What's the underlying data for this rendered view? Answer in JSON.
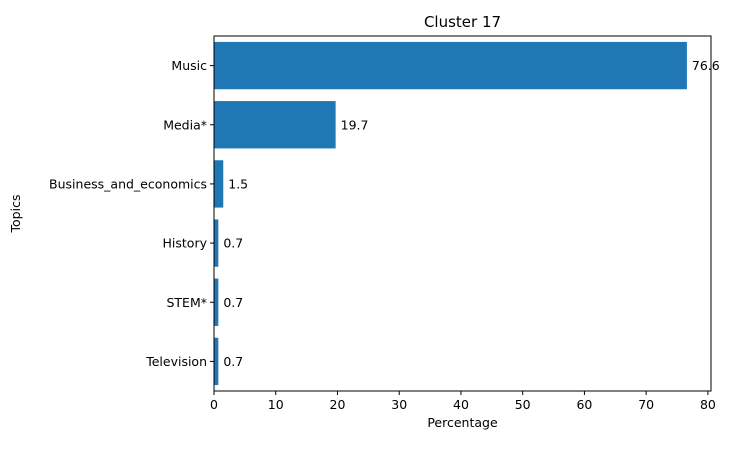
{
  "chart_data": {
    "type": "bar",
    "orientation": "horizontal",
    "title": "Cluster 17",
    "xlabel": "Percentage",
    "ylabel": "Topics",
    "categories": [
      "Music",
      "Media*",
      "Business_and_economics",
      "History",
      "STEM*",
      "Television"
    ],
    "values": [
      76.6,
      19.7,
      1.5,
      0.7,
      0.7,
      0.7
    ],
    "data_labels": [
      "76.6",
      "19.7",
      "1.5",
      "0.7",
      "0.7",
      "0.7"
    ],
    "xlim": [
      0,
      80.5
    ],
    "xticks": [
      0,
      10,
      20,
      30,
      40,
      50,
      60,
      70,
      80
    ],
    "xtick_labels": [
      "0",
      "10",
      "20",
      "30",
      "40",
      "50",
      "60",
      "70",
      "80"
    ],
    "grid": false,
    "legend": "none",
    "bar_color": "#1f77b4"
  }
}
